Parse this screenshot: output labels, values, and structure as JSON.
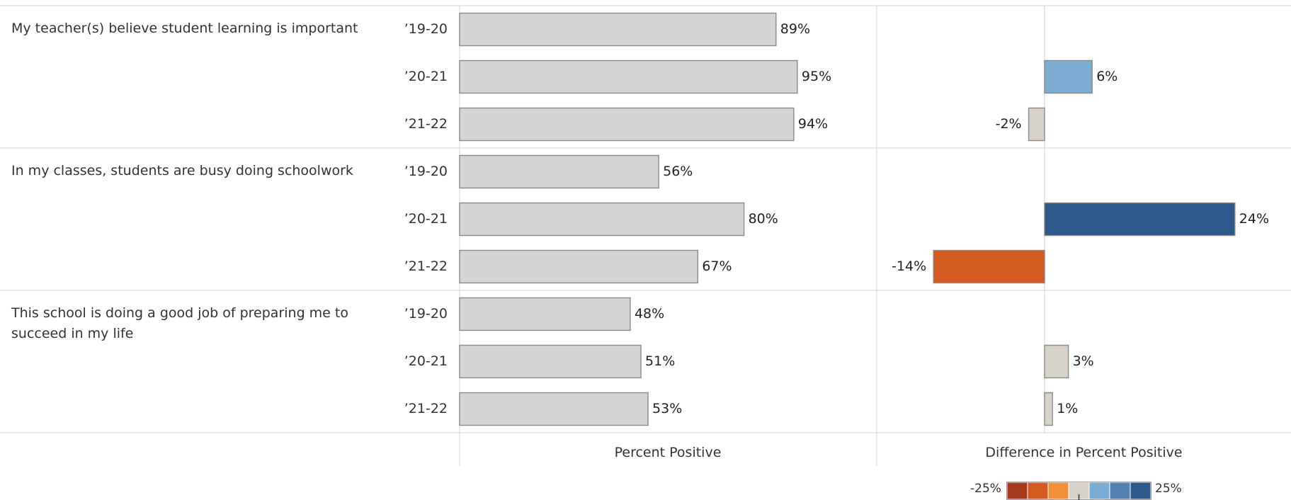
{
  "chart_data": {
    "type": "bar",
    "questions": [
      {
        "label": "My teacher(s) believe student learning is important",
        "years": [
          "’19-20",
          "’20-21",
          "’21-22"
        ],
        "values": [
          89,
          95,
          94
        ],
        "value_labels": [
          "89%",
          "95%",
          "94%"
        ],
        "diffs": [
          null,
          6,
          -2
        ],
        "diff_labels": [
          "",
          "6%",
          "-2%"
        ]
      },
      {
        "label": "In my classes, students are busy doing schoolwork",
        "years": [
          "’19-20",
          "’20-21",
          "’21-22"
        ],
        "values": [
          56,
          80,
          67
        ],
        "value_labels": [
          "56%",
          "80%",
          "67%"
        ],
        "diffs": [
          null,
          24,
          -14
        ],
        "diff_labels": [
          "",
          "24%",
          "-14%"
        ]
      },
      {
        "label": "This school is doing a good job of preparing me to succeed in my life",
        "years": [
          "’19-20",
          "’20-21",
          "’21-22"
        ],
        "values": [
          48,
          51,
          53
        ],
        "value_labels": [
          "48%",
          "51%",
          "53%"
        ],
        "diffs": [
          null,
          3,
          1
        ],
        "diff_labels": [
          "",
          "3%",
          "1%"
        ]
      }
    ],
    "xlabel_left": "Percent Positive",
    "xlabel_right": "Difference in Percent Positive",
    "percent_range": [
      0,
      100
    ],
    "diff_range": [
      -25,
      25
    ],
    "bar_color": "#d4d4d4",
    "legend": {
      "min_label": "-25%",
      "max_label": "25%",
      "colors": [
        "#a63a1e",
        "#d45a22",
        "#f0903a",
        "#d8d3c8",
        "#7badd4",
        "#4f82b0",
        "#2c5a8a"
      ]
    }
  }
}
